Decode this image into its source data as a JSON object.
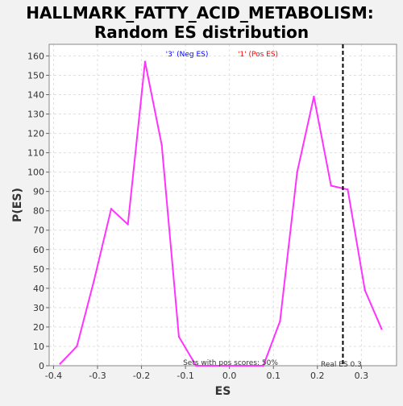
{
  "chart_data": {
    "type": "line",
    "title": "HALLMARK_FATTY_ACID_METABOLISM:",
    "subtitle": "Random ES distribution",
    "xlabel": "ES",
    "ylabel": "P(ES)",
    "xlim": [
      -0.41,
      0.38
    ],
    "ylim": [
      0,
      166
    ],
    "x_ticks": [
      -0.4,
      -0.3,
      -0.2,
      -0.1,
      0.0,
      0.1,
      0.2,
      0.3
    ],
    "x_tick_labels": [
      "-0.4",
      "-0.3",
      "-0.2",
      "-0.1",
      "0.0",
      "0.1",
      "0.2",
      "0.3"
    ],
    "y_ticks": [
      0,
      10,
      20,
      30,
      40,
      50,
      60,
      70,
      80,
      90,
      100,
      110,
      120,
      130,
      140,
      150,
      160
    ],
    "y_tick_labels": [
      "0",
      "10",
      "20",
      "30",
      "40",
      "50",
      "60",
      "70",
      "80",
      "90",
      "100",
      "110",
      "120",
      "130",
      "140",
      "150",
      "160"
    ],
    "grid": true,
    "series": [
      {
        "color": "#ff33ff",
        "x": [
          -0.385,
          -0.347,
          -0.308,
          -0.269,
          -0.231,
          -0.192,
          -0.154,
          -0.115,
          -0.076,
          -0.038,
          0.0,
          0.038,
          0.077,
          0.115,
          0.154,
          0.192,
          0.231,
          0.269,
          0.308,
          0.346
        ],
        "y": [
          1,
          10,
          44,
          81,
          73,
          157,
          114,
          15,
          0,
          0,
          0,
          0,
          0,
          23,
          100,
          139,
          93,
          91,
          39,
          19
        ]
      }
    ],
    "legend": {
      "neg_label": "'3' (Neg ES)",
      "neg_color": "#0000ff",
      "pos_label": "'1' (Pos ES)",
      "pos_color": "#ff0000",
      "placement": "top-center"
    },
    "real_es": {
      "value": 0.258,
      "label": "Real ES 0.3"
    },
    "annotation": "Sets with pos scores: 50%"
  }
}
